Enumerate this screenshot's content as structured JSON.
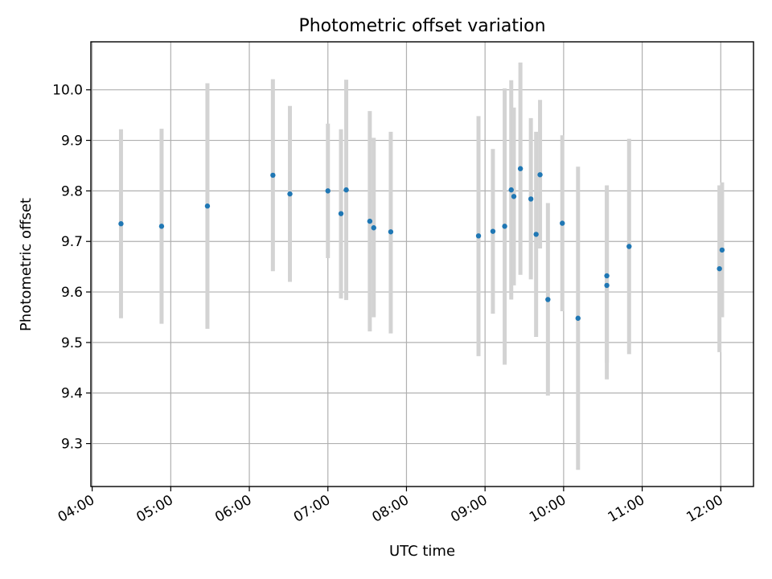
{
  "chart_data": {
    "type": "scatter",
    "title": "Photometric offset variation",
    "xlabel": "UTC time",
    "ylabel": "Photometric offset",
    "x_axis_kind": "time",
    "xlim": [
      "03:59",
      "12:25"
    ],
    "ylim": [
      9.215,
      10.095
    ],
    "xticks": [
      "04:00",
      "05:00",
      "06:00",
      "07:00",
      "08:00",
      "09:00",
      "10:00",
      "11:00",
      "12:00"
    ],
    "yticks": [
      9.3,
      9.4,
      9.5,
      9.6,
      9.7,
      9.8,
      9.9,
      10.0
    ],
    "ytick_labels": [
      "9.3",
      "9.4",
      "9.5",
      "9.6",
      "9.7",
      "9.8",
      "9.9",
      "10.0"
    ],
    "grid": true,
    "colors": {
      "points": "#1f77b4",
      "error_bars": "#d3d3d3",
      "grid": "#b0b0b0"
    },
    "points": [
      {
        "x": "04:22",
        "y": 9.735,
        "ylow": 9.548,
        "yhigh": 9.922
      },
      {
        "x": "04:53",
        "y": 9.73,
        "ylow": 9.537,
        "yhigh": 9.923
      },
      {
        "x": "05:28",
        "y": 9.77,
        "ylow": 9.527,
        "yhigh": 10.013
      },
      {
        "x": "06:18",
        "y": 9.831,
        "ylow": 9.641,
        "yhigh": 10.021
      },
      {
        "x": "06:31",
        "y": 9.794,
        "ylow": 9.62,
        "yhigh": 9.968
      },
      {
        "x": "07:00",
        "y": 9.8,
        "ylow": 9.667,
        "yhigh": 9.933
      },
      {
        "x": "07:10",
        "y": 9.755,
        "ylow": 9.587,
        "yhigh": 9.922
      },
      {
        "x": "07:14",
        "y": 9.802,
        "ylow": 9.584,
        "yhigh": 10.02
      },
      {
        "x": "07:32",
        "y": 9.74,
        "ylow": 9.522,
        "yhigh": 9.958
      },
      {
        "x": "07:35",
        "y": 9.727,
        "ylow": 9.55,
        "yhigh": 9.905
      },
      {
        "x": "07:48",
        "y": 9.719,
        "ylow": 9.518,
        "yhigh": 9.917
      },
      {
        "x": "08:55",
        "y": 9.711,
        "ylow": 9.473,
        "yhigh": 9.948
      },
      {
        "x": "09:06",
        "y": 9.72,
        "ylow": 9.557,
        "yhigh": 9.883
      },
      {
        "x": "09:15",
        "y": 9.73,
        "ylow": 9.456,
        "yhigh": 10.003
      },
      {
        "x": "09:20",
        "y": 9.802,
        "ylow": 9.585,
        "yhigh": 10.019
      },
      {
        "x": "09:22",
        "y": 9.789,
        "ylow": 9.613,
        "yhigh": 9.965
      },
      {
        "x": "09:27",
        "y": 9.844,
        "ylow": 9.634,
        "yhigh": 10.054
      },
      {
        "x": "09:35",
        "y": 9.784,
        "ylow": 9.625,
        "yhigh": 9.944
      },
      {
        "x": "09:39",
        "y": 9.714,
        "ylow": 9.511,
        "yhigh": 9.917
      },
      {
        "x": "09:42",
        "y": 9.832,
        "ylow": 9.686,
        "yhigh": 9.98
      },
      {
        "x": "09:48",
        "y": 9.585,
        "ylow": 9.395,
        "yhigh": 9.776
      },
      {
        "x": "09:59",
        "y": 9.736,
        "ylow": 9.562,
        "yhigh": 9.91
      },
      {
        "x": "10:11",
        "y": 9.548,
        "ylow": 9.248,
        "yhigh": 9.848
      },
      {
        "x": "10:33",
        "y": 9.632,
        "ylow": 9.46,
        "yhigh": 9.811
      },
      {
        "x": "10:33",
        "y": 9.613,
        "ylow": 9.427,
        "yhigh": 9.8
      },
      {
        "x": "10:50",
        "y": 9.69,
        "ylow": 9.477,
        "yhigh": 9.903
      },
      {
        "x": "11:59",
        "y": 9.646,
        "ylow": 9.481,
        "yhigh": 9.811
      },
      {
        "x": "12:01",
        "y": 9.683,
        "ylow": 9.55,
        "yhigh": 9.817
      }
    ]
  }
}
